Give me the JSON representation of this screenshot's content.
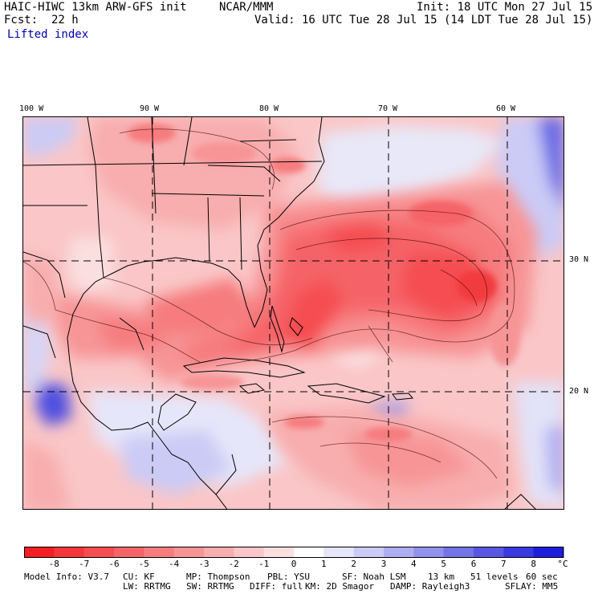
{
  "header": {
    "model_title": "HAIC-HIWC 13km ARW-GFS init",
    "org": "NCAR/MMM",
    "init": "Init: 18 UTC Mon 27 Jul 15",
    "fcst_label": "Fcst:",
    "fcst_value": "22 h",
    "valid": "Valid: 16 UTC Tue 28 Jul 15 (14 LDT Tue 28 Jul 15)",
    "field": "Lifted index"
  },
  "map": {
    "lon_ticks": [
      "100 W",
      "90 W",
      "80 W",
      "70 W",
      "60 W"
    ],
    "lat_ticks": [
      "30 N",
      "20 N"
    ],
    "lon_range": [
      -100,
      -55
    ],
    "lat_range": [
      12,
      36
    ]
  },
  "colorbar": {
    "labels": [
      "-8",
      "-7",
      "-6",
      "-5",
      "-4",
      "-3",
      "-2",
      "-1",
      "0",
      "1",
      "2",
      "3",
      "4",
      "5",
      "6",
      "7",
      "8"
    ],
    "unit": "°C",
    "colors": [
      "#f41f24",
      "#f5363a",
      "#f54d51",
      "#f56467",
      "#f67c7e",
      "#f79496",
      "#f8adae",
      "#fac6c7",
      "#fbdfe0",
      "#ffffff",
      "#e6e6fb",
      "#cbcbf6",
      "#aeaef1",
      "#9292ec",
      "#7474e8",
      "#5757e4",
      "#3a3ae0",
      "#1e1edc"
    ]
  },
  "footer": {
    "line1_a": "Model Info: V3.7",
    "line1_b": "CU: KF",
    "line1_c": "MP: Thompson",
    "line1_d": "PBL: YSU",
    "line1_e": "SF: Noah LSM",
    "line1_f": "13 km",
    "line1_g": "51 levels",
    "line1_h": "60 sec",
    "line2_a": "LW: RRTMG",
    "line2_b": "SW: RRTMG",
    "line2_c": "DIFF: full",
    "line2_d": "KM: 2D Smagor",
    "line2_e": "DAMP: Rayleigh3",
    "line2_f": "SFLAY: MM5"
  }
}
